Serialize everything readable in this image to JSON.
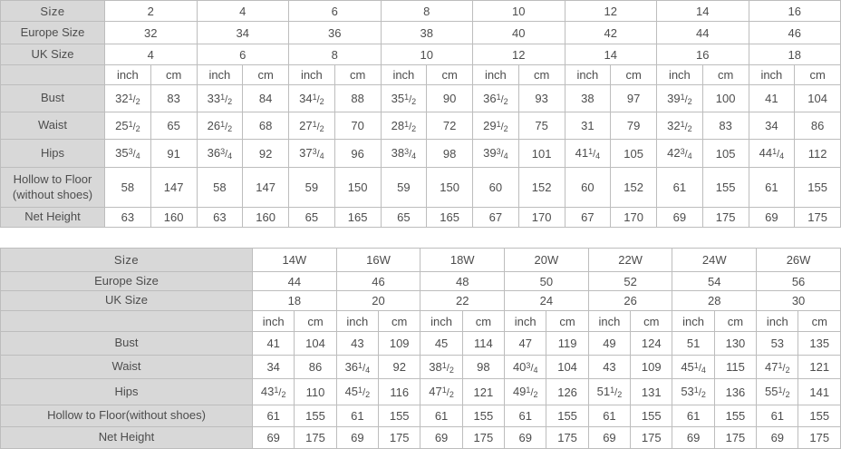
{
  "colors": {
    "label_background": "#d8d8d8",
    "cell_border": "#bdbdbd",
    "text": "#4d4d4d"
  },
  "tables": [
    {
      "id": "standard-sizes",
      "size_label": "Size",
      "europe_label": "Europe Size",
      "uk_label": "UK Size",
      "unit_inch": "inch",
      "unit_cm": "cm",
      "sizes": [
        "2",
        "4",
        "6",
        "8",
        "10",
        "12",
        "14",
        "16"
      ],
      "europe_sizes": [
        "32",
        "34",
        "36",
        "38",
        "40",
        "42",
        "44",
        "46"
      ],
      "uk_sizes": [
        "4",
        "6",
        "8",
        "10",
        "12",
        "14",
        "16",
        "18"
      ],
      "rows": [
        {
          "label": "Bust",
          "values": [
            "32 1/2",
            "83",
            "33 1/2",
            "84",
            "34 1/2",
            "88",
            "35 1/2",
            "90",
            "36 1/2",
            "93",
            "38",
            "97",
            "39 1/2",
            "100",
            "41",
            "104"
          ]
        },
        {
          "label": "Waist",
          "values": [
            "25 1/2",
            "65",
            "26 1/2",
            "68",
            "27 1/2",
            "70",
            "28 1/2",
            "72",
            "29 1/2",
            "75",
            "31",
            "79",
            "32 1/2",
            "83",
            "34",
            "86"
          ]
        },
        {
          "label": "Hips",
          "values": [
            "35 3/4",
            "91",
            "36 3/4",
            "92",
            "37 3/4",
            "96",
            "38 3/4",
            "98",
            "39 3/4",
            "101",
            "41 1/4",
            "105",
            "42 3/4",
            "105",
            "44 1/4",
            "112"
          ]
        },
        {
          "label": "Hollow to Floor (without shoes)",
          "values": [
            "58",
            "147",
            "58",
            "147",
            "59",
            "150",
            "59",
            "150",
            "60",
            "152",
            "60",
            "152",
            "61",
            "155",
            "61",
            "155"
          ]
        },
        {
          "label": "Net Height",
          "values": [
            "63",
            "160",
            "63",
            "160",
            "65",
            "165",
            "65",
            "165",
            "67",
            "170",
            "67",
            "170",
            "69",
            "175",
            "69",
            "175"
          ]
        }
      ]
    },
    {
      "id": "plus-sizes",
      "size_label": "Size",
      "europe_label": "Europe Size",
      "uk_label": "UK Size",
      "unit_inch": "inch",
      "unit_cm": "cm",
      "sizes": [
        "14W",
        "16W",
        "18W",
        "20W",
        "22W",
        "24W",
        "26W"
      ],
      "europe_sizes": [
        "44",
        "46",
        "48",
        "50",
        "52",
        "54",
        "56"
      ],
      "uk_sizes": [
        "18",
        "20",
        "22",
        "24",
        "26",
        "28",
        "30"
      ],
      "rows": [
        {
          "label": "Bust",
          "values": [
            "41",
            "104",
            "43",
            "109",
            "45",
            "114",
            "47",
            "119",
            "49",
            "124",
            "51",
            "130",
            "53",
            "135"
          ]
        },
        {
          "label": "Waist",
          "values": [
            "34",
            "86",
            "36 1/4",
            "92",
            "38 1/2",
            "98",
            "40 3/4",
            "104",
            "43",
            "109",
            "45 1/4",
            "115",
            "47 1/2",
            "121"
          ]
        },
        {
          "label": "Hips",
          "values": [
            "43 1/2",
            "110",
            "45 1/2",
            "116",
            "47 1/2",
            "121",
            "49 1/2",
            "126",
            "51 1/2",
            "131",
            "53 1/2",
            "136",
            "55 1/2",
            "141"
          ]
        },
        {
          "label": "Hollow to Floor(without shoes)",
          "values": [
            "61",
            "155",
            "61",
            "155",
            "61",
            "155",
            "61",
            "155",
            "61",
            "155",
            "61",
            "155",
            "61",
            "155"
          ]
        },
        {
          "label": "Net Height",
          "values": [
            "69",
            "175",
            "69",
            "175",
            "69",
            "175",
            "69",
            "175",
            "69",
            "175",
            "69",
            "175",
            "69",
            "175"
          ]
        }
      ]
    }
  ]
}
